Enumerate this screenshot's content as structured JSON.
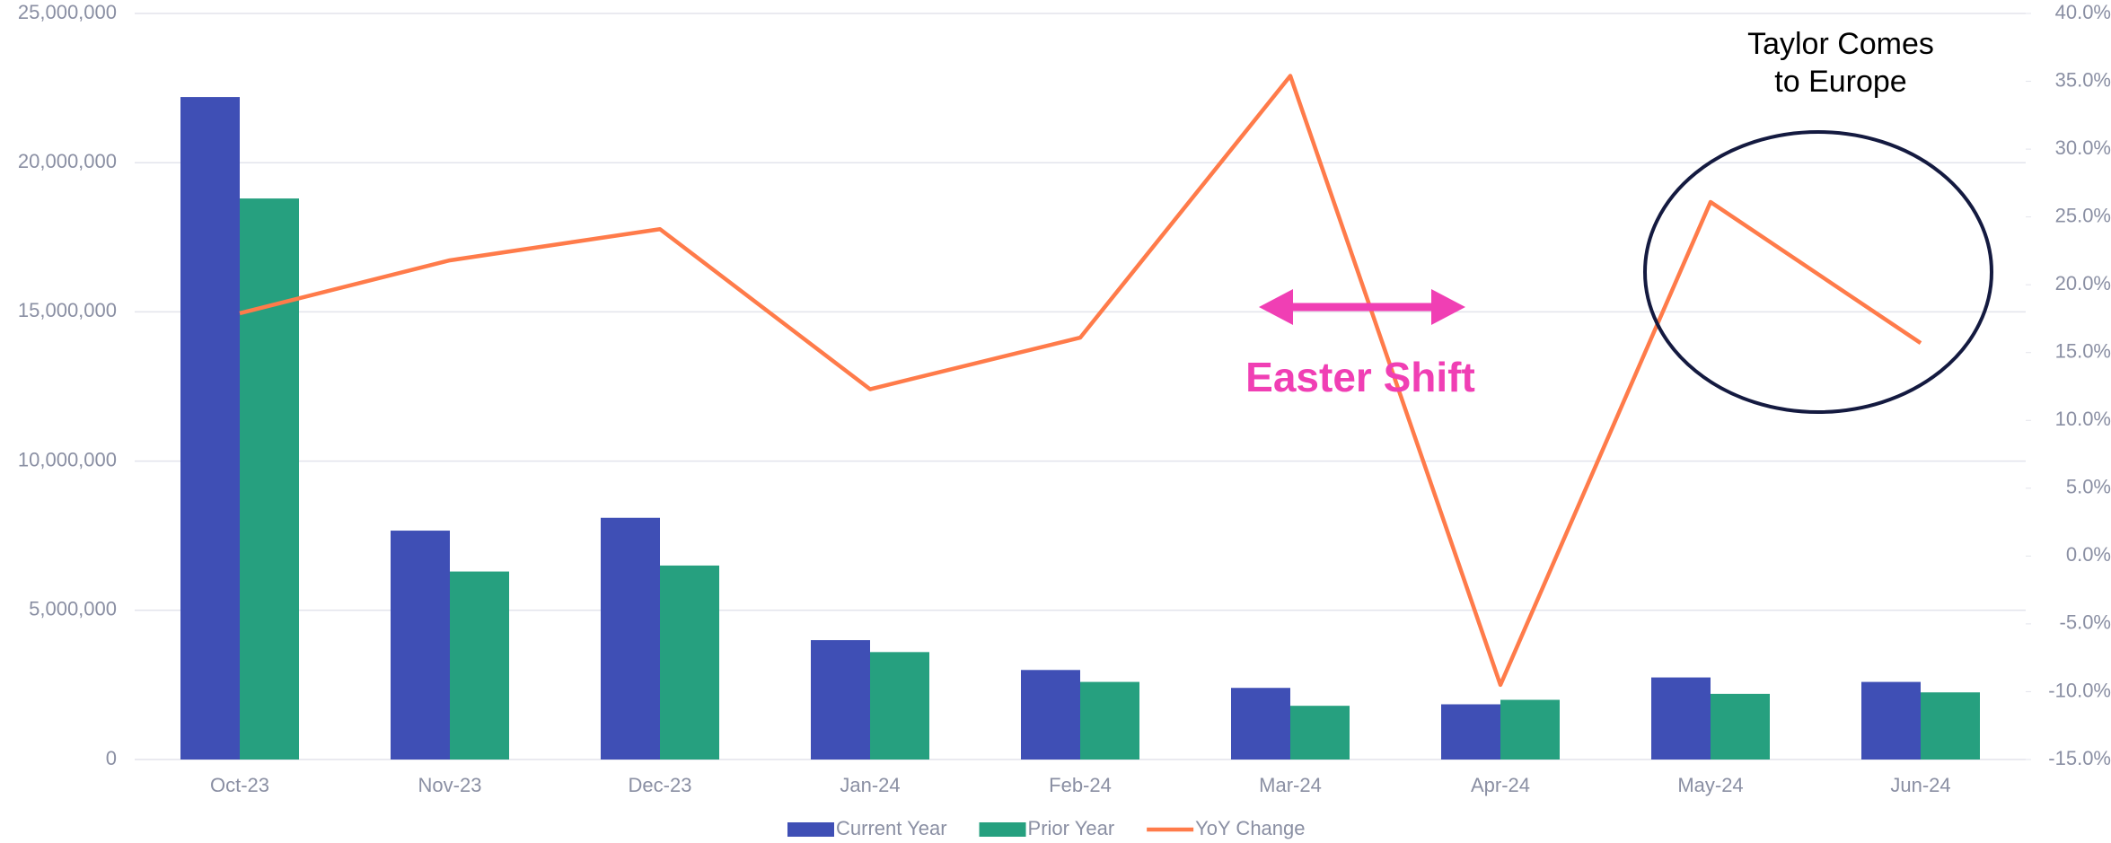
{
  "chart_data": {
    "type": "bar",
    "categories": [
      "Oct-23",
      "Nov-23",
      "Dec-23",
      "Jan-24",
      "Feb-24",
      "Mar-24",
      "Apr-24",
      "May-24",
      "Jun-24"
    ],
    "series": [
      {
        "name": "Current Year",
        "type": "bar",
        "color": "#3f4fb5",
        "values": [
          22200000,
          7670000,
          8100000,
          4000000,
          3000000,
          2400000,
          1850000,
          2750000,
          2600000
        ]
      },
      {
        "name": "Prior Year",
        "type": "bar",
        "color": "#26a07f",
        "values": [
          18800000,
          6300000,
          6500000,
          3600000,
          2600000,
          1800000,
          2000000,
          2200000,
          2250000
        ]
      },
      {
        "name": "YoY Change",
        "type": "line",
        "axis": "y2",
        "color": "#ff7b4a",
        "values": [
          17.9,
          21.8,
          24.1,
          12.3,
          16.1,
          35.4,
          -9.5,
          26.1,
          15.7
        ]
      }
    ],
    "ylim": [
      0,
      25000000
    ],
    "yticks": [
      0,
      {
        "value": 5000000,
        "label": "5,000,000"
      },
      {
        "value": 10000000,
        "label": "10,000,000"
      },
      {
        "value": 15000000,
        "label": "15,000,000"
      },
      {
        "value": 20000000,
        "label": "20,000,000"
      },
      {
        "value": 25000000,
        "label": "25,000,000"
      }
    ],
    "y2lim": [
      -15,
      40
    ],
    "y2ticks": [
      {
        "value": -15,
        "label": "-15.0%"
      },
      {
        "value": -10,
        "label": "-10.0%"
      },
      {
        "value": -5,
        "label": "-5.0%"
      },
      {
        "value": 0,
        "label": "0.0%"
      },
      {
        "value": 5,
        "label": "5.0%"
      },
      {
        "value": 10,
        "label": "10.0%"
      },
      {
        "value": 15,
        "label": "15.0%"
      },
      {
        "value": 20,
        "label": "20.0%"
      },
      {
        "value": 25,
        "label": "25.0%"
      },
      {
        "value": 30,
        "label": "30.0%"
      },
      {
        "value": 35,
        "label": "35.0%"
      },
      {
        "value": 40,
        "label": "40.0%"
      }
    ],
    "grid": true,
    "legend": "bottom",
    "annotations": [
      {
        "text": "Easter Shift",
        "color": "#f03fb4"
      },
      {
        "lines": [
          "Taylor Comes",
          "to Europe"
        ],
        "color": "#141a40"
      }
    ]
  }
}
